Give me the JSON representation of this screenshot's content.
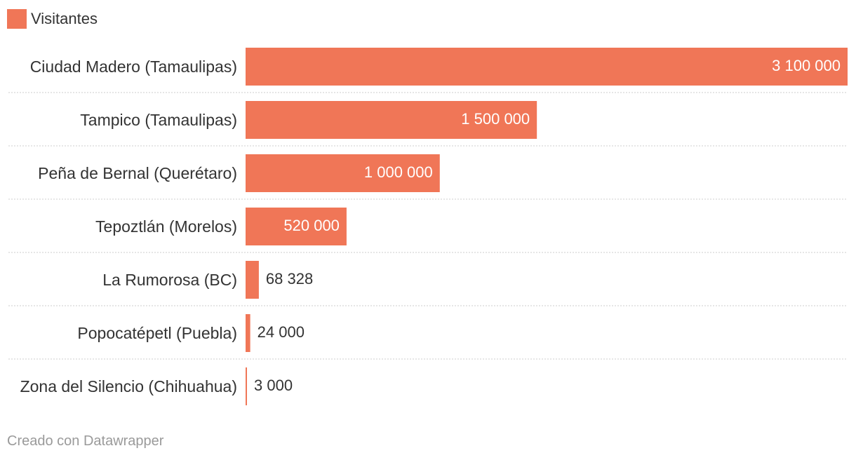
{
  "chart_data": {
    "type": "bar",
    "orientation": "horizontal",
    "legend": "Visitantes",
    "categories": [
      "Ciudad Madero (Tamaulipas)",
      "Tampico (Tamaulipas)",
      "Peña de Bernal (Querétaro)",
      "Tepoztlán (Morelos)",
      "La Rumorosa (BC)",
      "Popocatépetl (Puebla)",
      "Zona del Silencio (Chihuahua)"
    ],
    "series": [
      {
        "name": "Visitantes",
        "values": [
          3100000,
          1500000,
          1000000,
          520000,
          68328,
          24000,
          3000
        ],
        "value_labels": [
          "3 100 000",
          "1 500 000",
          "1 000 000",
          "520 000",
          "68 328",
          "24 000",
          "3 000"
        ]
      }
    ],
    "xlim": [
      0,
      3100000
    ],
    "grid": false,
    "colors": {
      "bar": "#f07657",
      "label_inside": "#ffffff",
      "label_outside": "#333333",
      "separator": "#cccccc"
    }
  },
  "footer": {
    "credit": "Creado con Datawrapper"
  }
}
